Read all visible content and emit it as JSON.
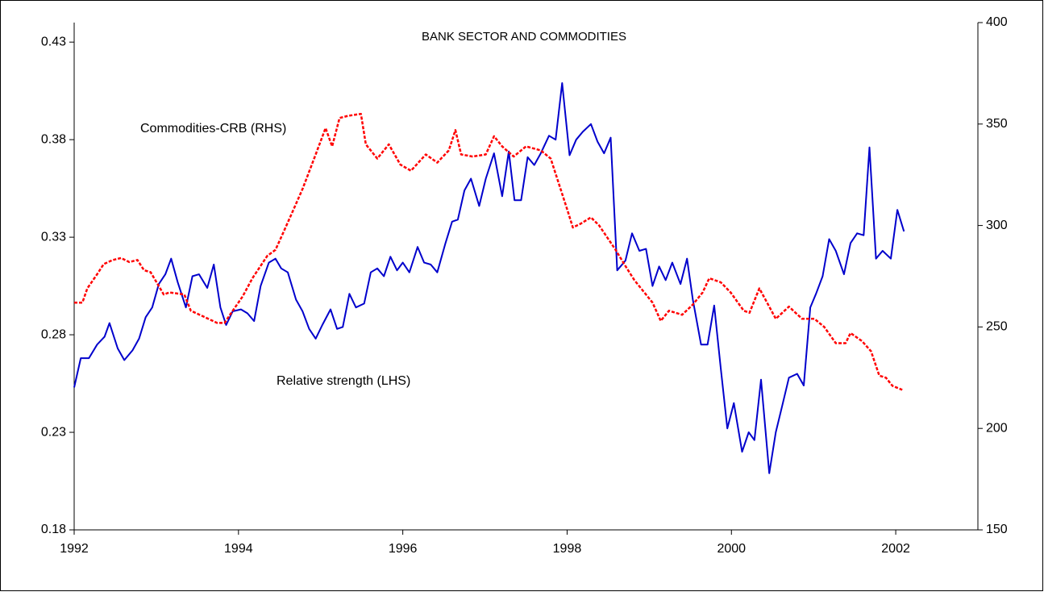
{
  "chart_data": {
    "type": "line",
    "title": "BANK SECTOR AND COMMODITIES",
    "annotations": [
      "Commodities-CRB (RHS)",
      "Relative strength (LHS)"
    ],
    "xlim": [
      1992,
      2003
    ],
    "xticks": [
      1992,
      1994,
      1996,
      1998,
      2000,
      2002
    ],
    "ylim": [
      0.18,
      0.44
    ],
    "yticks": [
      0.18,
      0.23,
      0.28,
      0.33,
      0.38,
      0.43
    ],
    "y2lim": [
      150,
      400
    ],
    "y2ticks": [
      150,
      200,
      250,
      300,
      350,
      400
    ],
    "series": [
      {
        "name": "Relative strength (LHS)",
        "color": "#0000cc",
        "axis": "y",
        "x": [
          1992.0,
          1992.08,
          1992.18,
          1992.28,
          1992.37,
          1992.43,
          1992.53,
          1992.61,
          1992.71,
          1992.79,
          1992.87,
          1992.95,
          1993.03,
          1993.11,
          1993.18,
          1993.26,
          1993.36,
          1993.44,
          1993.52,
          1993.62,
          1993.7,
          1993.78,
          1993.85,
          1993.93,
          1994.03,
          1994.11,
          1994.19,
          1994.27,
          1994.37,
          1994.45,
          1994.52,
          1994.6,
          1994.7,
          1994.78,
          1994.86,
          1994.94,
          1995.02,
          1995.12,
          1995.2,
          1995.27,
          1995.35,
          1995.43,
          1995.53,
          1995.61,
          1995.69,
          1995.77,
          1995.85,
          1995.93,
          1996.0,
          1996.08,
          1996.18,
          1996.26,
          1996.34,
          1996.42,
          1996.52,
          1996.6,
          1996.67,
          1996.75,
          1996.83,
          1996.93,
          1997.01,
          1997.11,
          1997.21,
          1997.29,
          1997.36,
          1997.44,
          1997.52,
          1997.6,
          1997.68,
          1997.78,
          1997.86,
          1997.94,
          1998.03,
          1998.11,
          1998.19,
          1998.29,
          1998.37,
          1998.45,
          1998.53,
          1998.61,
          1998.71,
          1998.79,
          1998.88,
          1998.96,
          1999.04,
          1999.12,
          1999.2,
          1999.28,
          1999.38,
          1999.46,
          1999.53,
          1999.63,
          1999.71,
          1999.79,
          1999.87,
          1999.95,
          2000.03,
          2000.13,
          2000.21,
          2000.28,
          2000.36,
          2000.46,
          2000.54,
          2000.62,
          2000.7,
          2000.8,
          2000.88,
          2000.96,
          2001.03,
          2001.11,
          2001.19,
          2001.27,
          2001.37,
          2001.45,
          2001.53,
          2001.61,
          2001.68,
          2001.76,
          2001.84,
          2001.94,
          2002.02,
          2002.1
        ],
        "values": [
          0.253,
          0.268,
          0.268,
          0.275,
          0.279,
          0.286,
          0.273,
          0.267,
          0.272,
          0.278,
          0.289,
          0.294,
          0.306,
          0.311,
          0.319,
          0.307,
          0.294,
          0.31,
          0.311,
          0.304,
          0.316,
          0.294,
          0.285,
          0.292,
          0.293,
          0.291,
          0.287,
          0.305,
          0.317,
          0.319,
          0.314,
          0.312,
          0.298,
          0.292,
          0.283,
          0.278,
          0.285,
          0.293,
          0.283,
          0.284,
          0.301,
          0.294,
          0.296,
          0.312,
          0.314,
          0.31,
          0.32,
          0.313,
          0.317,
          0.312,
          0.325,
          0.317,
          0.316,
          0.312,
          0.327,
          0.338,
          0.339,
          0.354,
          0.36,
          0.346,
          0.36,
          0.373,
          0.351,
          0.374,
          0.349,
          0.349,
          0.371,
          0.367,
          0.373,
          0.382,
          0.38,
          0.409,
          0.372,
          0.38,
          0.384,
          0.388,
          0.379,
          0.373,
          0.381,
          0.313,
          0.318,
          0.332,
          0.323,
          0.324,
          0.305,
          0.315,
          0.308,
          0.317,
          0.306,
          0.319,
          0.298,
          0.275,
          0.275,
          0.295,
          0.263,
          0.232,
          0.245,
          0.22,
          0.23,
          0.226,
          0.257,
          0.209,
          0.23,
          0.244,
          0.258,
          0.26,
          0.254,
          0.294,
          0.301,
          0.31,
          0.329,
          0.323,
          0.311,
          0.327,
          0.332,
          0.331,
          0.376,
          0.319,
          0.323,
          0.319,
          0.344,
          0.333
        ]
      },
      {
        "name": "Commodities-CRB (RHS)",
        "color": "#ff0000",
        "axis": "y2",
        "x": [
          1992.0,
          1992.1,
          1992.16,
          1992.28,
          1992.36,
          1992.47,
          1992.57,
          1992.67,
          1992.77,
          1992.85,
          1992.93,
          1993.09,
          1993.16,
          1993.34,
          1993.42,
          1993.58,
          1993.74,
          1993.83,
          1993.93,
          1994.05,
          1994.17,
          1994.35,
          1994.45,
          1994.54,
          1994.66,
          1994.78,
          1994.94,
          1995.06,
          1995.14,
          1995.23,
          1995.33,
          1995.49,
          1995.55,
          1995.69,
          1995.83,
          1995.97,
          1996.1,
          1996.28,
          1996.42,
          1996.56,
          1996.64,
          1996.71,
          1996.85,
          1997.01,
          1997.11,
          1997.21,
          1997.35,
          1997.5,
          1997.68,
          1997.8,
          1998.0,
          1998.07,
          1998.17,
          1998.29,
          1998.39,
          1998.49,
          1998.59,
          1998.71,
          1998.82,
          1998.92,
          1999.04,
          1999.14,
          1999.24,
          1999.4,
          1999.53,
          1999.65,
          1999.73,
          1999.87,
          1999.99,
          2000.15,
          2000.22,
          2000.34,
          2000.46,
          2000.54,
          2000.7,
          2000.86,
          2001.01,
          2001.13,
          2001.27,
          2001.39,
          2001.45,
          2001.59,
          2001.7,
          2001.8,
          2001.88,
          2001.96,
          2002.08
        ],
        "values": [
          262,
          262,
          269,
          276,
          281,
          283,
          284,
          282,
          283,
          278,
          277,
          266,
          267,
          266,
          258,
          255,
          252,
          252,
          258,
          265,
          274,
          285,
          288,
          296,
          307,
          318,
          335,
          348,
          339,
          353,
          354,
          355,
          340,
          333,
          340,
          330,
          327,
          335,
          331,
          337,
          347,
          335,
          334,
          335,
          344,
          339,
          334,
          339,
          337,
          333,
          308,
          299,
          301,
          304,
          300,
          294,
          288,
          280,
          273,
          268,
          262,
          253,
          258,
          256,
          261,
          267,
          274,
          272,
          267,
          258,
          257,
          269,
          260,
          254,
          260,
          254,
          254,
          250,
          242,
          242,
          247,
          243,
          238,
          226,
          225,
          221,
          219
        ]
      }
    ]
  }
}
